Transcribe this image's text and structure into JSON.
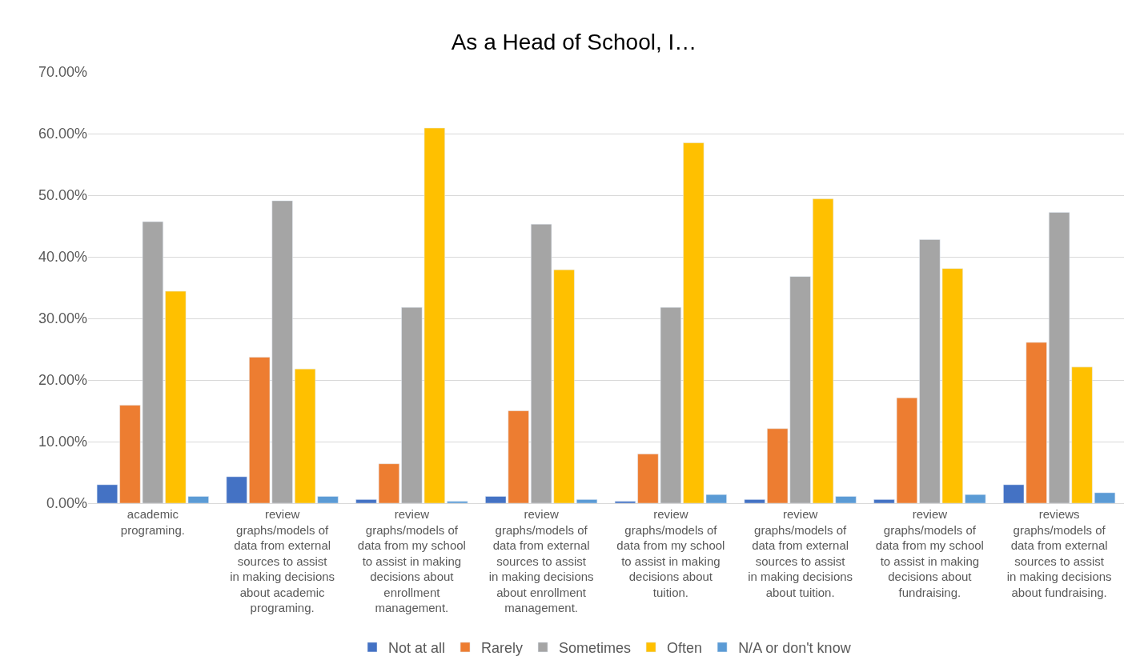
{
  "chart_data": {
    "type": "bar",
    "title": "As a Head of School, I…",
    "categories": [
      "academic programing.",
      "review graphs/models of data from external sources to assist in making decisions about academic programing.",
      "review graphs/models of data from my school to assist in making decisions about enrollment management.",
      "review graphs/models of data from external sources to assist in making decisions about enrollment management.",
      "review graphs/models of data from my school to assist in making decisions about tuition.",
      "review graphs/models of data from external sources to assist in making decisions about tuition.",
      "review graphs/models of data from my school to assist in making decisions about fundraising.",
      "reviews graphs/models of data from external sources to assist in making decisions about fundraising."
    ],
    "series": [
      {
        "name": "Not at all",
        "color": "#4472c4",
        "values": [
          3.0,
          4.3,
          0.6,
          1.1,
          0.3,
          0.6,
          0.6,
          3.0
        ]
      },
      {
        "name": "Rarely",
        "color": "#ed7d31",
        "values": [
          15.9,
          23.7,
          6.4,
          15.0,
          8.0,
          12.1,
          17.1,
          26.1
        ]
      },
      {
        "name": "Sometimes",
        "color": "#a5a5a5",
        "values": [
          45.7,
          49.1,
          31.8,
          45.3,
          31.8,
          36.8,
          42.8,
          47.2
        ]
      },
      {
        "name": "Often",
        "color": "#ffc000",
        "values": [
          34.4,
          21.8,
          60.9,
          37.9,
          58.5,
          49.4,
          38.1,
          22.1
        ]
      },
      {
        "name": "N/A or don't know",
        "color": "#5b9bd5",
        "values": [
          1.1,
          1.1,
          0.3,
          0.6,
          1.4,
          1.1,
          1.4,
          1.7
        ]
      }
    ],
    "ylim": [
      0,
      70
    ],
    "yticks": [
      {
        "value": 0,
        "label": "0.00%"
      },
      {
        "value": 10,
        "label": "10.00%"
      },
      {
        "value": 20,
        "label": "20.00%"
      },
      {
        "value": 30,
        "label": "30.00%"
      },
      {
        "value": 40,
        "label": "40.00%"
      },
      {
        "value": 50,
        "label": "50.00%"
      },
      {
        "value": 60,
        "label": "60.00%"
      },
      {
        "value": 70,
        "label": "70.00%"
      }
    ],
    "grid": "y",
    "legend": "bottom"
  }
}
